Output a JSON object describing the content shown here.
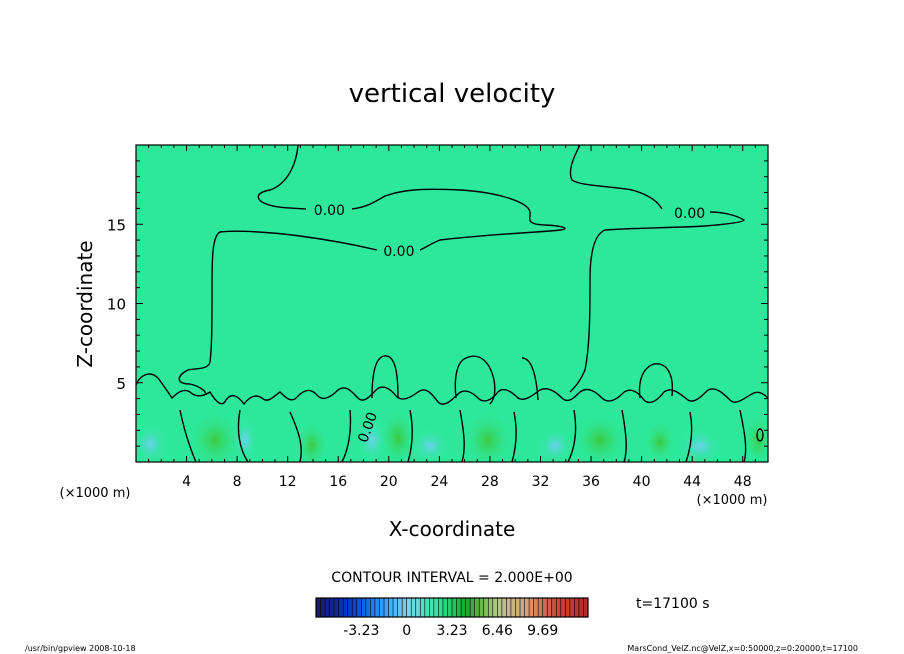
{
  "chart_data": {
    "type": "heatmap",
    "title": "vertical velocity",
    "xlabel": "X-coordinate",
    "ylabel": "Z-coordinate",
    "x_unit": "(×1000 m)",
    "y_unit": "(×1000 m)",
    "xlim": [
      0,
      50
    ],
    "ylim": [
      0,
      20
    ],
    "x_ticks": [
      4,
      8,
      12,
      16,
      20,
      24,
      28,
      32,
      36,
      40,
      44,
      48
    ],
    "y_ticks": [
      5,
      10,
      15
    ],
    "contour_labels": [
      {
        "text": "0.00",
        "x": 15.3,
        "z": 15.9
      },
      {
        "text": "0.00",
        "x": 20.8,
        "z": 13.3
      },
      {
        "text": "0.00",
        "x": 43.8,
        "z": 15.7
      },
      {
        "text": "0.00",
        "x": 18.3,
        "z": 2.2
      }
    ],
    "contour_interval_text": "CONTOUR INTERVAL = 2.000E+00",
    "time_text": "t=17100  s",
    "colorbar": {
      "min": -6.46,
      "max": 12.92,
      "tick_labels": [
        "-3.23",
        "0",
        "3.23",
        "6.46",
        "9.69"
      ],
      "tick_values": [
        -3.23,
        0,
        3.23,
        6.46,
        9.69
      ],
      "colors": [
        "#1a1a66",
        "#0033cc",
        "#1e90ff",
        "#7ed3f0",
        "#2fe8a0",
        "#1aa626",
        "#b5c98a",
        "#d9a07a",
        "#cc4a3a",
        "#b52b2b"
      ]
    },
    "background_color": "#2de89a",
    "grid": false
  },
  "footer": {
    "left": "/usr/bin/gpview   2008-10-18",
    "right": "MarsCond_VelZ.nc@VelZ,x=0:50000,z=0:20000,t=17100"
  }
}
